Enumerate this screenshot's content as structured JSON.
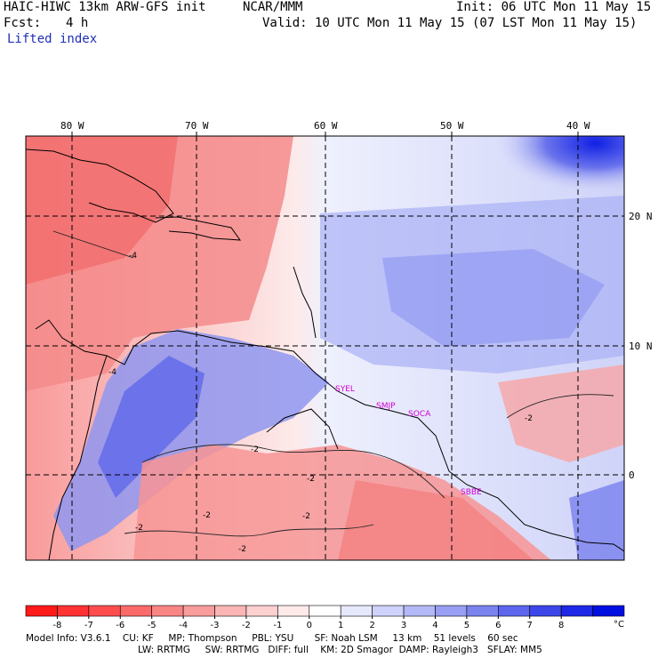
{
  "header": {
    "model": "HAIC-HIWC 13km ARW-GFS init",
    "org": "NCAR/MMM",
    "init": "Init: 06 UTC Mon 11 May 15",
    "fcst_label": "Fcst:",
    "fcst_value": "4 h",
    "valid": "Valid: 10 UTC Mon 11 May 15 (07 LST Mon 11 May 15)",
    "field": "Lifted index"
  },
  "map": {
    "lon_labels": [
      "80 W",
      "70 W",
      "60 W",
      "50 W",
      "40 W"
    ],
    "lat_labels": [
      "20 N",
      "10 N",
      "0"
    ],
    "stations": [
      "SYEL",
      "SMJP",
      "SOCA",
      "SBBE"
    ],
    "contour_labels": [
      "-2",
      "-2",
      "-2",
      "-2",
      "-2",
      "-2",
      "-2",
      "-4",
      "-4"
    ]
  },
  "colorbar": {
    "ticks": [
      "-8",
      "-7",
      "-6",
      "-5",
      "-4",
      "-3",
      "-2",
      "-1",
      "0",
      "1",
      "2",
      "3",
      "4",
      "5",
      "6",
      "7",
      "8"
    ],
    "unit": "°C",
    "colors": [
      "#ff1a1a",
      "#ff3333",
      "#ff4d4d",
      "#fb6a6a",
      "#f98484",
      "#f99c9c",
      "#fbb5b5",
      "#fdd0d0",
      "#ffeaea",
      "#ffffff",
      "#e6e8fc",
      "#cfd2fa",
      "#b3b8f6",
      "#979ef3",
      "#7b83ef",
      "#5d66ec",
      "#3d46e8",
      "#1f28e6",
      "#0010e0"
    ]
  },
  "footer": {
    "line1": "Model Info: V3.6.1    CU: KF     MP: Thompson     PBL: YSU       SF: Noah LSM     13 km    51 levels    60 sec",
    "line2": "LW: RRTMG     SW: RRTMG   DIFF: full    KM: 2D Smagor  DAMP: Rayleigh3   SFLAY: MM5"
  }
}
